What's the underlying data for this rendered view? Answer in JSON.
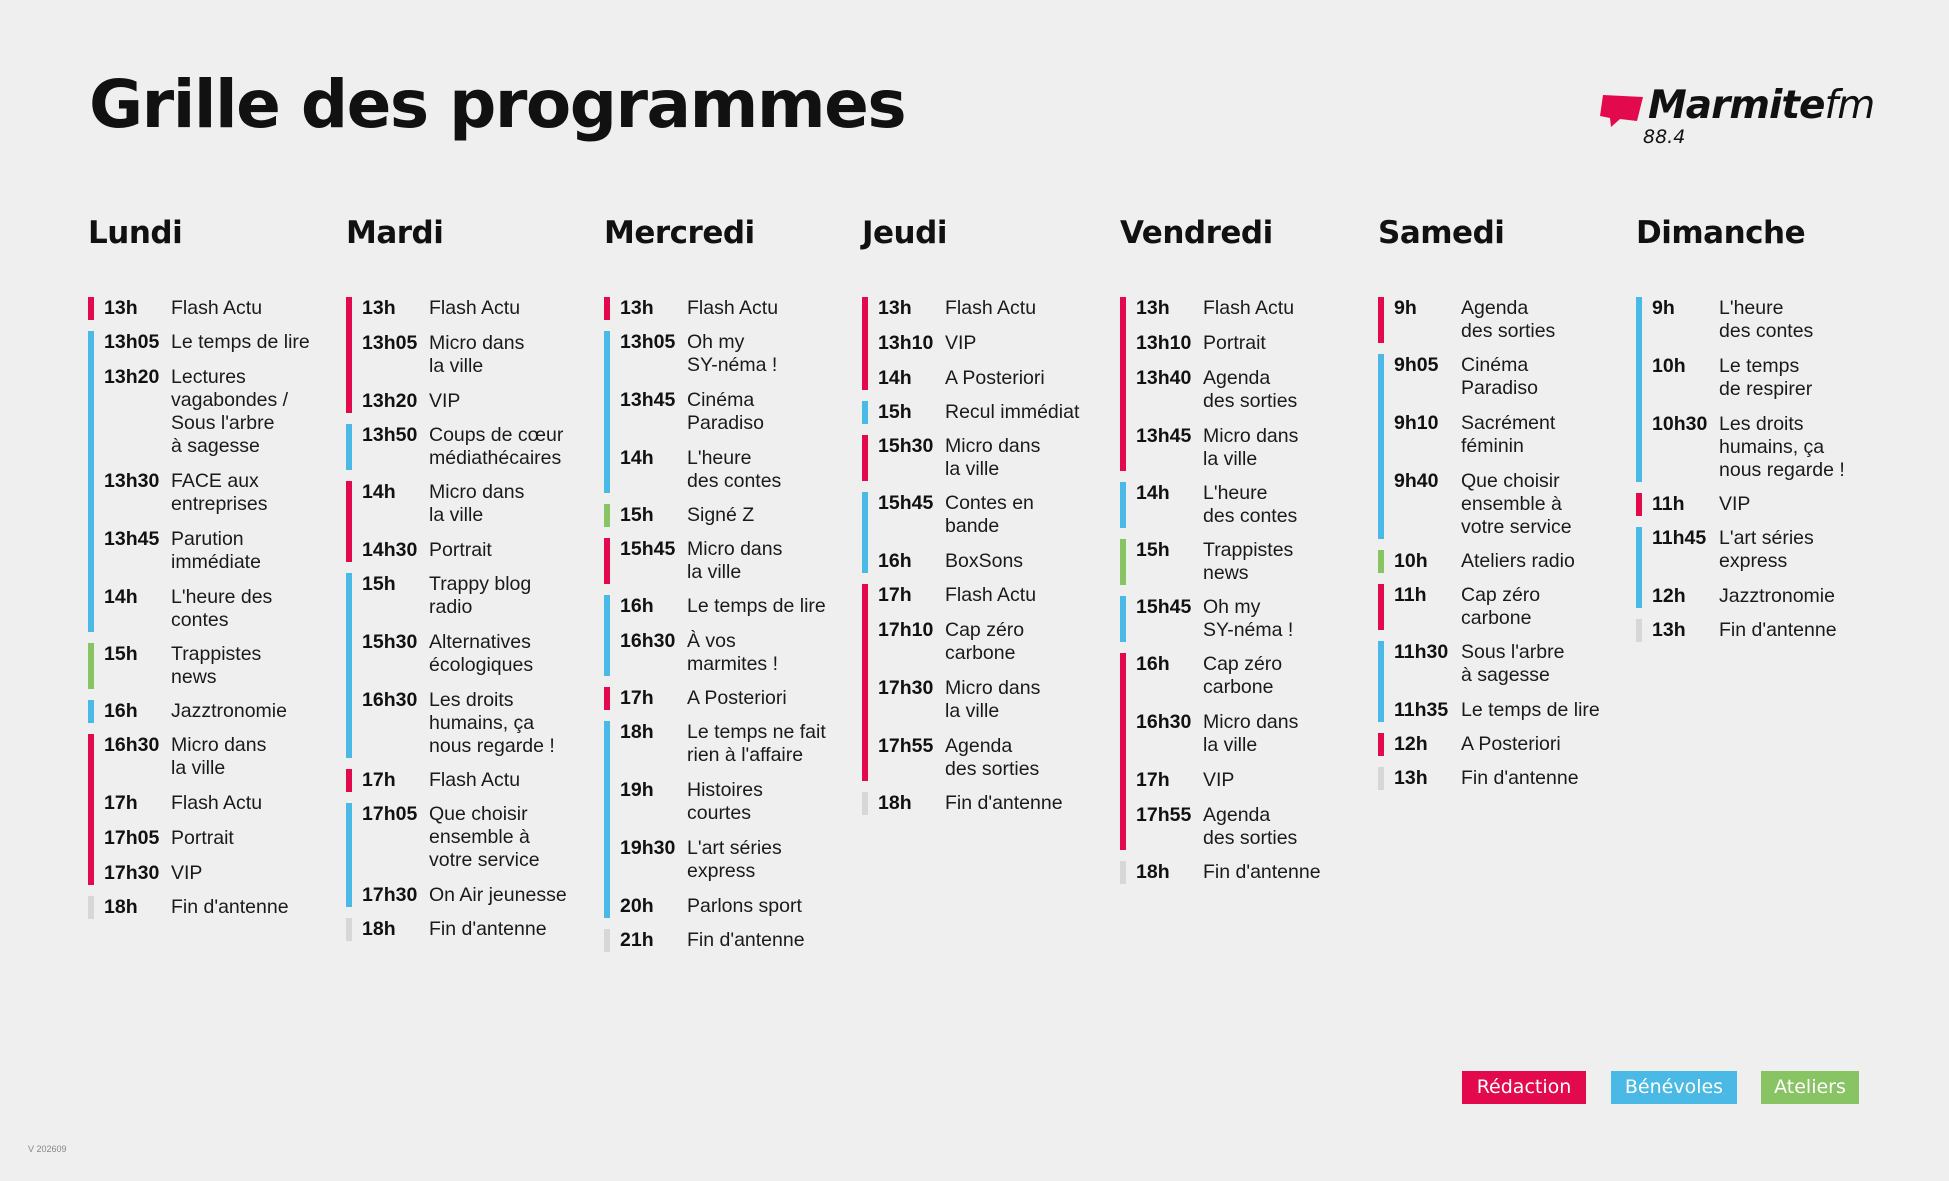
{
  "title": "Grille des programmes",
  "logo": {
    "name_bold": "Marmite",
    "name_light": "fm",
    "frequency": "88.4",
    "color": "#e20a4d"
  },
  "colors": {
    "red": "#e20a4d",
    "blue": "#4ab9e6",
    "green": "#88c463",
    "gray": "#d7d7d7"
  },
  "days": [
    {
      "name": "Lundi",
      "groups": [
        {
          "color": "red",
          "items": [
            {
              "time": "13h",
              "prog": "Flash Actu"
            }
          ]
        },
        {
          "color": "blue",
          "items": [
            {
              "time": "13h05",
              "prog": "Le temps de lire"
            },
            {
              "time": "13h20",
              "prog": "Lectures\nvagabondes /\nSous l'arbre\nà sagesse"
            },
            {
              "time": "13h30",
              "prog": "FACE aux\nentreprises"
            },
            {
              "time": "13h45",
              "prog": "Parution\nimmédiate"
            },
            {
              "time": "14h",
              "prog": "L'heure des\ncontes"
            }
          ]
        },
        {
          "color": "green",
          "items": [
            {
              "time": "15h",
              "prog": "Trappistes\nnews"
            }
          ]
        },
        {
          "color": "blue",
          "items": [
            {
              "time": "16h",
              "prog": "Jazztronomie"
            }
          ]
        },
        {
          "color": "red",
          "items": [
            {
              "time": "16h30",
              "prog": "Micro dans\nla ville"
            },
            {
              "time": "17h",
              "prog": "Flash Actu"
            },
            {
              "time": "17h05",
              "prog": "Portrait"
            },
            {
              "time": "17h30",
              "prog": "VIP"
            }
          ]
        },
        {
          "color": "gray",
          "items": [
            {
              "time": "18h",
              "prog": "Fin d'antenne"
            }
          ]
        }
      ]
    },
    {
      "name": "Mardi",
      "groups": [
        {
          "color": "red",
          "items": [
            {
              "time": "13h",
              "prog": "Flash Actu"
            },
            {
              "time": "13h05",
              "prog": "Micro dans\nla ville"
            },
            {
              "time": "13h20",
              "prog": "VIP"
            }
          ]
        },
        {
          "color": "blue",
          "items": [
            {
              "time": "13h50",
              "prog": "Coups de cœur\nmédiathécaires"
            }
          ]
        },
        {
          "color": "red",
          "items": [
            {
              "time": "14h",
              "prog": "Micro dans\nla ville"
            },
            {
              "time": "14h30",
              "prog": "Portrait"
            }
          ]
        },
        {
          "color": "blue",
          "items": [
            {
              "time": "15h",
              "prog": "Trappy blog\nradio"
            },
            {
              "time": "15h30",
              "prog": "Alternatives\nécologiques"
            },
            {
              "time": "16h30",
              "prog": "Les droits\nhumains, ça\nnous regarde !"
            }
          ]
        },
        {
          "color": "red",
          "items": [
            {
              "time": "17h",
              "prog": "Flash Actu"
            }
          ]
        },
        {
          "color": "blue",
          "items": [
            {
              "time": "17h05",
              "prog": "Que choisir\nensemble à\nvotre service"
            },
            {
              "time": "17h30",
              "prog": "On Air jeunesse"
            }
          ]
        },
        {
          "color": "gray",
          "items": [
            {
              "time": "18h",
              "prog": "Fin d'antenne"
            }
          ]
        }
      ]
    },
    {
      "name": "Mercredi",
      "groups": [
        {
          "color": "red",
          "items": [
            {
              "time": "13h",
              "prog": "Flash Actu"
            }
          ]
        },
        {
          "color": "blue",
          "items": [
            {
              "time": "13h05",
              "prog": "Oh my\nSY-néma !"
            },
            {
              "time": "13h45",
              "prog": "Cinéma\nParadiso"
            },
            {
              "time": "14h",
              "prog": "L'heure\ndes contes"
            }
          ]
        },
        {
          "color": "green",
          "items": [
            {
              "time": "15h",
              "prog": "Signé Z"
            }
          ]
        },
        {
          "color": "red",
          "items": [
            {
              "time": "15h45",
              "prog": "Micro dans\nla ville"
            }
          ]
        },
        {
          "color": "blue",
          "items": [
            {
              "time": "16h",
              "prog": "Le temps de lire"
            },
            {
              "time": "16h30",
              "prog": "À vos\nmarmites !"
            }
          ]
        },
        {
          "color": "red",
          "items": [
            {
              "time": "17h",
              "prog": "A Posteriori"
            }
          ]
        },
        {
          "color": "blue",
          "items": [
            {
              "time": "18h",
              "prog": "Le temps ne fait\nrien à l'affaire"
            },
            {
              "time": "19h",
              "prog": "Histoires\ncourtes"
            },
            {
              "time": "19h30",
              "prog": "L'art séries\nexpress"
            },
            {
              "time": "20h",
              "prog": "Parlons sport"
            }
          ]
        },
        {
          "color": "gray",
          "items": [
            {
              "time": "21h",
              "prog": "Fin d'antenne"
            }
          ]
        }
      ]
    },
    {
      "name": "Jeudi",
      "groups": [
        {
          "color": "red",
          "items": [
            {
              "time": "13h",
              "prog": "Flash Actu"
            },
            {
              "time": "13h10",
              "prog": "VIP"
            },
            {
              "time": "14h",
              "prog": "A Posteriori"
            }
          ]
        },
        {
          "color": "blue",
          "items": [
            {
              "time": "15h",
              "prog": "Recul immédiat"
            }
          ]
        },
        {
          "color": "red",
          "items": [
            {
              "time": "15h30",
              "prog": "Micro dans\nla ville"
            }
          ]
        },
        {
          "color": "blue",
          "items": [
            {
              "time": "15h45",
              "prog": "Contes en\nbande"
            },
            {
              "time": "16h",
              "prog": "BoxSons"
            }
          ]
        },
        {
          "color": "red",
          "items": [
            {
              "time": "17h",
              "prog": "Flash Actu"
            },
            {
              "time": "17h10",
              "prog": "Cap zéro\ncarbone"
            },
            {
              "time": "17h30",
              "prog": "Micro dans\nla ville"
            },
            {
              "time": "17h55",
              "prog": "Agenda\ndes sorties"
            }
          ]
        },
        {
          "color": "gray",
          "items": [
            {
              "time": "18h",
              "prog": "Fin d'antenne"
            }
          ]
        }
      ]
    },
    {
      "name": "Vendredi",
      "groups": [
        {
          "color": "red",
          "items": [
            {
              "time": "13h",
              "prog": "Flash Actu"
            },
            {
              "time": "13h10",
              "prog": "Portrait"
            },
            {
              "time": "13h40",
              "prog": "Agenda\ndes sorties"
            },
            {
              "time": "13h45",
              "prog": "Micro dans\nla ville"
            }
          ]
        },
        {
          "color": "blue",
          "items": [
            {
              "time": "14h",
              "prog": "L'heure\ndes contes"
            }
          ]
        },
        {
          "color": "green",
          "items": [
            {
              "time": "15h",
              "prog": "Trappistes\nnews"
            }
          ]
        },
        {
          "color": "blue",
          "items": [
            {
              "time": "15h45",
              "prog": "Oh my\nSY-néma !"
            }
          ]
        },
        {
          "color": "red",
          "items": [
            {
              "time": "16h",
              "prog": "Cap zéro\ncarbone"
            },
            {
              "time": "16h30",
              "prog": "Micro dans\nla ville"
            },
            {
              "time": "17h",
              "prog": "VIP"
            },
            {
              "time": "17h55",
              "prog": "Agenda\ndes sorties"
            }
          ]
        },
        {
          "color": "gray",
          "items": [
            {
              "time": "18h",
              "prog": "Fin d'antenne"
            }
          ]
        }
      ]
    },
    {
      "name": "Samedi",
      "groups": [
        {
          "color": "red",
          "items": [
            {
              "time": "9h",
              "prog": "Agenda\ndes sorties"
            }
          ]
        },
        {
          "color": "blue",
          "items": [
            {
              "time": "9h05",
              "prog": "Cinéma\nParadiso"
            },
            {
              "time": "9h10",
              "prog": "Sacrément\nféminin"
            },
            {
              "time": "9h40",
              "prog": "Que choisir\nensemble à\nvotre service"
            }
          ]
        },
        {
          "color": "green",
          "items": [
            {
              "time": "10h",
              "prog": "Ateliers radio"
            }
          ]
        },
        {
          "color": "red",
          "items": [
            {
              "time": "11h",
              "prog": "Cap zéro\ncarbone"
            }
          ]
        },
        {
          "color": "blue",
          "items": [
            {
              "time": "11h30",
              "prog": "Sous l'arbre\nà sagesse"
            },
            {
              "time": "11h35",
              "prog": "Le temps de lire"
            }
          ]
        },
        {
          "color": "red",
          "items": [
            {
              "time": "12h",
              "prog": "A Posteriori"
            }
          ]
        },
        {
          "color": "gray",
          "items": [
            {
              "time": "13h",
              "prog": "Fin d'antenne"
            }
          ]
        }
      ]
    },
    {
      "name": "Dimanche",
      "groups": [
        {
          "color": "blue",
          "items": [
            {
              "time": "9h",
              "prog": "L'heure\ndes contes"
            },
            {
              "time": "10h",
              "prog": "Le temps\nde respirer"
            },
            {
              "time": "10h30",
              "prog": "Les droits\nhumains, ça\nnous regarde !"
            }
          ]
        },
        {
          "color": "red",
          "items": [
            {
              "time": "11h",
              "prog": "VIP"
            }
          ]
        },
        {
          "color": "blue",
          "items": [
            {
              "time": "11h45",
              "prog": "L'art séries\nexpress"
            },
            {
              "time": "12h",
              "prog": "Jazztronomie"
            }
          ]
        },
        {
          "color": "gray",
          "items": [
            {
              "time": "13h",
              "prog": "Fin d'antenne"
            }
          ]
        }
      ]
    }
  ],
  "legend": [
    {
      "label": "Rédaction",
      "color": "red"
    },
    {
      "label": "Bénévoles",
      "color": "blue"
    },
    {
      "label": "Ateliers",
      "color": "green"
    }
  ],
  "version": "V 202609"
}
